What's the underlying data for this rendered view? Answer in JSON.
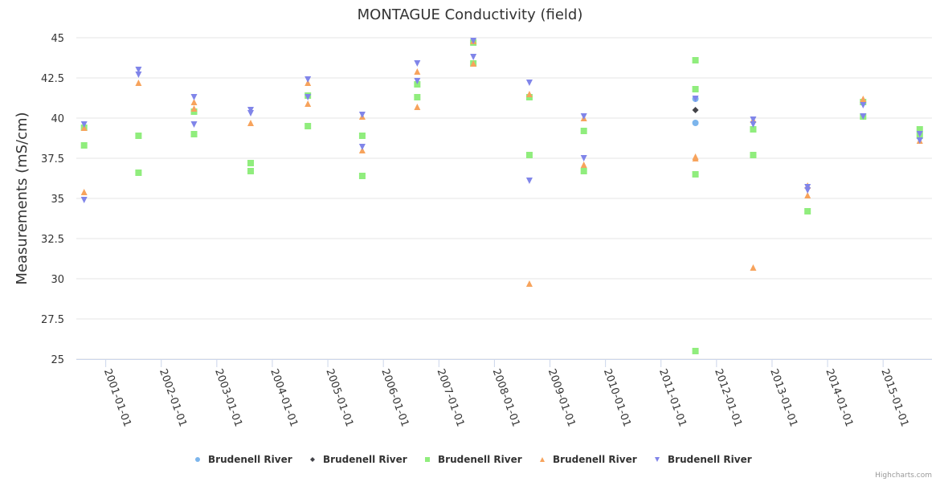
{
  "chart_data": {
    "type": "scatter",
    "title": "MONTAGUE Conductivity (field)",
    "xlabel": "",
    "ylabel": "Measurements (mS/cm)",
    "ylim": [
      25,
      45
    ],
    "yticks": [
      "25",
      "27.5",
      "30",
      "32.5",
      "35",
      "37.5",
      "40",
      "42.5",
      "45"
    ],
    "ytick_values": [
      25,
      27.5,
      30,
      32.5,
      35,
      37.5,
      40,
      42.5,
      45
    ],
    "xlim_years": [
      2000.47,
      2015.88
    ],
    "xticks": [
      "2001-01-01",
      "2002-01-01",
      "2003-01-01",
      "2004-01-01",
      "2005-01-01",
      "2006-01-01",
      "2007-01-01",
      "2008-01-01",
      "2009-01-01",
      "2010-01-01",
      "2011-01-01",
      "2012-01-01",
      "2013-01-01",
      "2014-01-01",
      "2015-01-01"
    ],
    "xtick_years": [
      2001,
      2002,
      2003,
      2004,
      2005,
      2006,
      2007,
      2008,
      2009,
      2010,
      2011,
      2012,
      2013,
      2014,
      2015
    ],
    "grid": true,
    "legend_position": "bottom-center",
    "credits": "Highcharts.com",
    "series": [
      {
        "name": "Brudenell River",
        "marker": "circle",
        "color": "#7cb5ec",
        "points": [
          {
            "x": 2011.62,
            "y": 41.2
          },
          {
            "x": 2011.62,
            "y": 39.7
          }
        ]
      },
      {
        "name": "Brudenell River",
        "marker": "diamond",
        "color": "#434348",
        "points": [
          {
            "x": 2011.62,
            "y": 40.5
          }
        ]
      },
      {
        "name": "Brudenell River",
        "marker": "square",
        "color": "#90ed7d",
        "points": [
          {
            "x": 2000.61,
            "y": 39.4
          },
          {
            "x": 2000.61,
            "y": 38.3
          },
          {
            "x": 2001.59,
            "y": 38.9
          },
          {
            "x": 2001.59,
            "y": 36.6
          },
          {
            "x": 2002.59,
            "y": 40.4
          },
          {
            "x": 2002.59,
            "y": 39.0
          },
          {
            "x": 2003.61,
            "y": 37.2
          },
          {
            "x": 2003.61,
            "y": 36.7
          },
          {
            "x": 2004.64,
            "y": 41.4
          },
          {
            "x": 2004.64,
            "y": 39.5
          },
          {
            "x": 2005.62,
            "y": 38.9
          },
          {
            "x": 2005.62,
            "y": 36.4
          },
          {
            "x": 2006.61,
            "y": 42.1
          },
          {
            "x": 2006.61,
            "y": 41.3
          },
          {
            "x": 2007.62,
            "y": 44.7
          },
          {
            "x": 2007.62,
            "y": 43.4
          },
          {
            "x": 2008.63,
            "y": 41.3
          },
          {
            "x": 2008.63,
            "y": 37.7
          },
          {
            "x": 2009.61,
            "y": 39.2
          },
          {
            "x": 2009.61,
            "y": 36.7
          },
          {
            "x": 2011.62,
            "y": 43.6
          },
          {
            "x": 2011.62,
            "y": 41.8
          },
          {
            "x": 2011.62,
            "y": 36.5
          },
          {
            "x": 2011.62,
            "y": 25.5
          },
          {
            "x": 2012.66,
            "y": 39.3
          },
          {
            "x": 2012.66,
            "y": 37.7
          },
          {
            "x": 2013.64,
            "y": 34.2
          },
          {
            "x": 2014.64,
            "y": 41.0
          },
          {
            "x": 2014.64,
            "y": 40.1
          },
          {
            "x": 2015.66,
            "y": 39.3
          },
          {
            "x": 2015.66,
            "y": 38.9
          }
        ]
      },
      {
        "name": "Brudenell River",
        "marker": "triangle",
        "color": "#f7a35c",
        "points": [
          {
            "x": 2000.61,
            "y": 39.4
          },
          {
            "x": 2000.61,
            "y": 35.4
          },
          {
            "x": 2001.59,
            "y": 42.2
          },
          {
            "x": 2002.59,
            "y": 41.0
          },
          {
            "x": 2002.59,
            "y": 40.6
          },
          {
            "x": 2003.61,
            "y": 39.7
          },
          {
            "x": 2004.64,
            "y": 42.2
          },
          {
            "x": 2004.64,
            "y": 40.9
          },
          {
            "x": 2005.62,
            "y": 40.1
          },
          {
            "x": 2005.62,
            "y": 38.0
          },
          {
            "x": 2006.61,
            "y": 42.9
          },
          {
            "x": 2006.61,
            "y": 40.7
          },
          {
            "x": 2007.62,
            "y": 44.8
          },
          {
            "x": 2007.62,
            "y": 43.4
          },
          {
            "x": 2008.63,
            "y": 41.5
          },
          {
            "x": 2008.63,
            "y": 29.7
          },
          {
            "x": 2009.61,
            "y": 40.0
          },
          {
            "x": 2009.61,
            "y": 37.1
          },
          {
            "x": 2011.62,
            "y": 37.6
          },
          {
            "x": 2011.62,
            "y": 37.5
          },
          {
            "x": 2012.66,
            "y": 39.9
          },
          {
            "x": 2012.66,
            "y": 30.7
          },
          {
            "x": 2013.64,
            "y": 35.8
          },
          {
            "x": 2013.64,
            "y": 35.2
          },
          {
            "x": 2014.64,
            "y": 41.2
          },
          {
            "x": 2015.66,
            "y": 38.6
          }
        ]
      },
      {
        "name": "Brudenell River",
        "marker": "triangle-down",
        "color": "#8085e9",
        "points": [
          {
            "x": 2000.61,
            "y": 39.6
          },
          {
            "x": 2000.61,
            "y": 34.9
          },
          {
            "x": 2001.59,
            "y": 43.0
          },
          {
            "x": 2001.59,
            "y": 42.7
          },
          {
            "x": 2002.59,
            "y": 41.3
          },
          {
            "x": 2002.59,
            "y": 39.6
          },
          {
            "x": 2003.61,
            "y": 40.5
          },
          {
            "x": 2003.61,
            "y": 40.3
          },
          {
            "x": 2004.64,
            "y": 42.4
          },
          {
            "x": 2004.64,
            "y": 41.3
          },
          {
            "x": 2005.62,
            "y": 40.2
          },
          {
            "x": 2005.62,
            "y": 38.2
          },
          {
            "x": 2006.61,
            "y": 43.4
          },
          {
            "x": 2006.61,
            "y": 42.3
          },
          {
            "x": 2007.62,
            "y": 44.8
          },
          {
            "x": 2007.62,
            "y": 43.8
          },
          {
            "x": 2008.63,
            "y": 42.2
          },
          {
            "x": 2008.63,
            "y": 36.1
          },
          {
            "x": 2009.61,
            "y": 40.1
          },
          {
            "x": 2009.61,
            "y": 37.5
          },
          {
            "x": 2011.62,
            "y": 41.2
          },
          {
            "x": 2012.66,
            "y": 39.9
          },
          {
            "x": 2012.66,
            "y": 39.6
          },
          {
            "x": 2013.64,
            "y": 35.7
          },
          {
            "x": 2013.64,
            "y": 35.5
          },
          {
            "x": 2014.64,
            "y": 40.8
          },
          {
            "x": 2014.64,
            "y": 40.1
          },
          {
            "x": 2015.66,
            "y": 39.0
          },
          {
            "x": 2015.66,
            "y": 38.6
          }
        ]
      }
    ]
  }
}
